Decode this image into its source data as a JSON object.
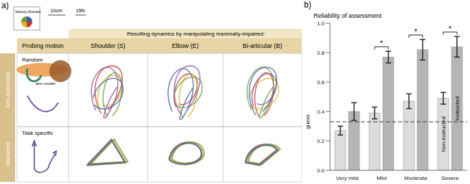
{
  "panel_a": {
    "label": "a)",
    "legend": {
      "title": "Velocity direction",
      "scales": [
        "10cm",
        "15N"
      ]
    },
    "header": "Resulting dynamics by manipulating maximally-impaired:",
    "columns": [
      "Probing motion",
      "Shoulder (S)",
      "Elbow (E)",
      "Bi-articular (B)"
    ],
    "rows": [
      {
        "group": "Non-Instructed",
        "probe": "Random",
        "note": "arm model"
      },
      {
        "group": "Instructed",
        "probe": "Task specific"
      }
    ]
  },
  "chart_data": {
    "type": "bar",
    "label": "b)",
    "title": "Reliability of assessment",
    "categories": [
      "Very mild",
      "Mild",
      "Moderate",
      "Severe"
    ],
    "series": [
      {
        "name": "Non-instructed",
        "color": "#dcdcdc",
        "values": [
          0.27,
          0.39,
          0.47,
          0.49
        ],
        "errors": [
          0.03,
          0.04,
          0.05,
          0.04
        ]
      },
      {
        "name": "Instructed",
        "color": "#b5b5b5",
        "values": [
          0.4,
          0.77,
          0.82,
          0.84
        ],
        "errors": [
          0.06,
          0.04,
          0.07,
          0.07
        ]
      }
    ],
    "ylim": [
      0,
      1
    ],
    "yticks": [
      {
        "value": 0,
        "label": "0.0"
      },
      {
        "value": 0.2,
        "label": "0.2"
      },
      {
        "value": 0.4,
        "label": "0.4"
      },
      {
        "value": 0.6,
        "label": "0.6"
      },
      {
        "value": 0.8,
        "label": "0.8"
      },
      {
        "value": 1,
        "label": "1.0"
      }
    ],
    "reference_line": {
      "value": 0.33,
      "label": "guess"
    },
    "significance": [
      null,
      "*",
      "*",
      "*"
    ]
  }
}
